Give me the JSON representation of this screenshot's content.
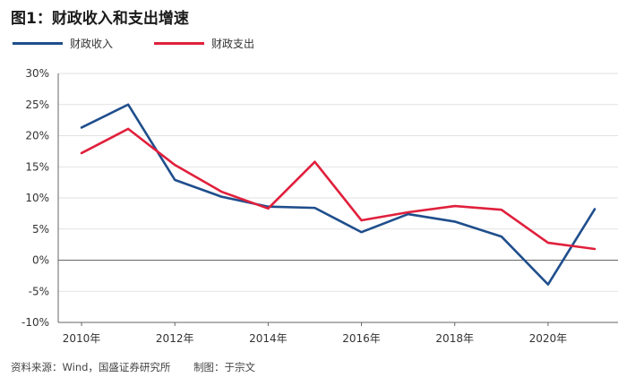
{
  "header": {
    "title": "图1：财政收入和支出增速"
  },
  "footer": {
    "source": "资料来源：Wind，国盛证券研究所",
    "author": "制图：于宗文"
  },
  "colors": {
    "revenue": "#1f4e8c",
    "expenditure": "#e0203c",
    "grid": "#d9d9d9",
    "axis": "#666666"
  },
  "chart_data": {
    "type": "line",
    "title": "财政收入和支出增速",
    "x": [
      2010,
      2011,
      2012,
      2013,
      2014,
      2015,
      2016,
      2017,
      2018,
      2019,
      2020,
      2021
    ],
    "xtick_labels": [
      "2010年",
      "2012年",
      "2014年",
      "2016年",
      "2018年",
      "2020年"
    ],
    "xtick_values": [
      2010,
      2012,
      2014,
      2016,
      2018,
      2020
    ],
    "ytick_labels": [
      "30%",
      "25%",
      "20%",
      "15%",
      "10%",
      "5%",
      "0%",
      "-5%",
      "-10%"
    ],
    "ytick_values": [
      30,
      25,
      20,
      15,
      10,
      5,
      0,
      -5,
      -10
    ],
    "ylim": [
      -10,
      30
    ],
    "xlim": [
      2009.5,
      2021.5
    ],
    "series": [
      {
        "name": "财政收入",
        "values": [
          21.3,
          25.0,
          12.9,
          10.2,
          8.6,
          8.4,
          4.5,
          7.4,
          6.2,
          3.8,
          -3.9,
          8.2
        ]
      },
      {
        "name": "财政支出",
        "values": [
          17.2,
          21.1,
          15.3,
          11.0,
          8.3,
          15.8,
          6.4,
          7.7,
          8.7,
          8.1,
          2.8,
          1.8
        ]
      }
    ],
    "legend_position": "top-left",
    "grid": true
  }
}
